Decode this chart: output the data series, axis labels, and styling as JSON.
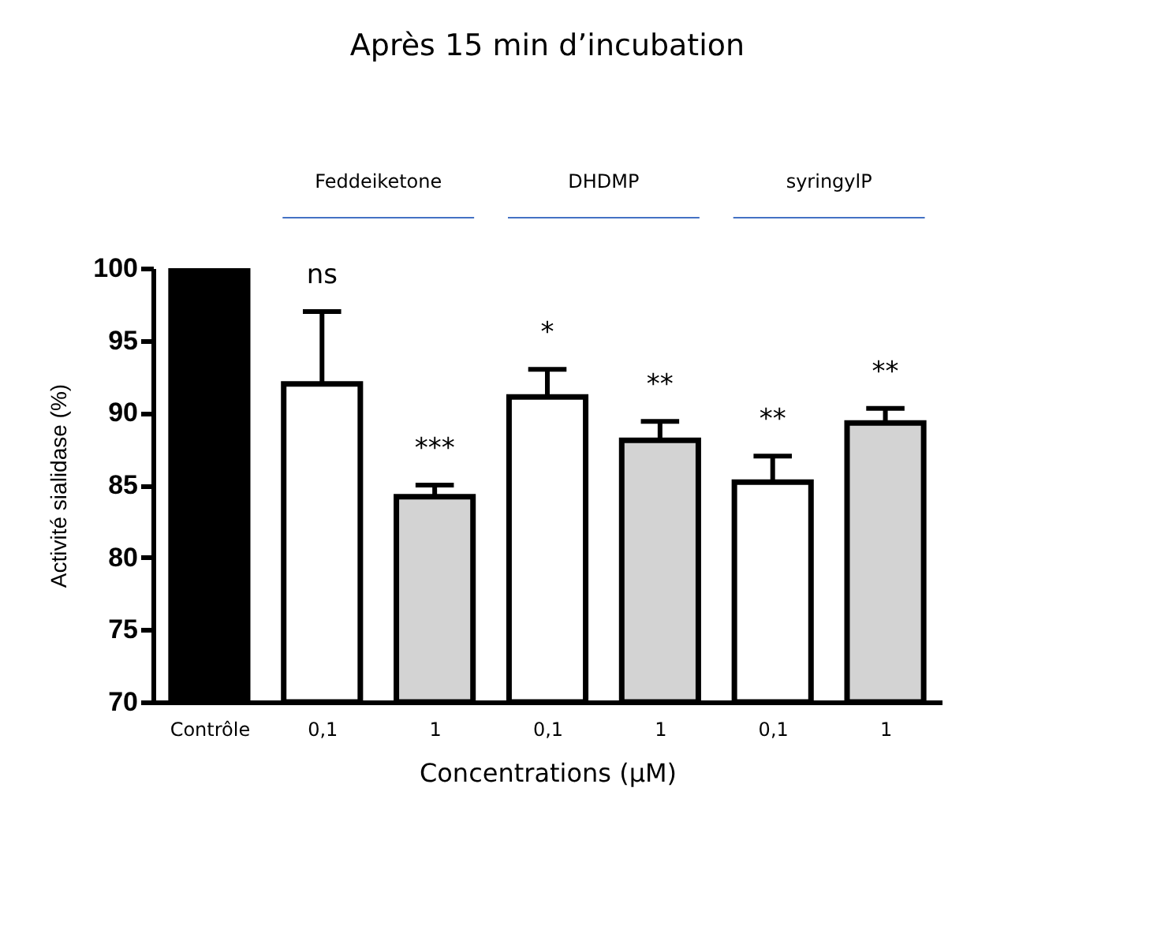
{
  "chart_data": {
    "type": "bar",
    "title": "Après 15 min d’incubation",
    "categories": [
      "Contrôle",
      "0,1",
      "1",
      "0,1",
      "1",
      "0,1",
      "1"
    ],
    "values": [
      100,
      92,
      84.2,
      91.1,
      88.1,
      85.2,
      89.3
    ],
    "colors": [
      "#000000",
      "#ffffff",
      "#d3d3d3",
      "#ffffff",
      "#d3d3d3",
      "#ffffff",
      "#d3d3d3"
    ],
    "errors": [
      null,
      [
        92,
        97
      ],
      [
        84.2,
        85
      ],
      [
        91.1,
        93
      ],
      [
        88.1,
        89.4
      ],
      [
        85.2,
        87
      ],
      [
        89.3,
        90.3
      ]
    ],
    "xlabel": "Concentrations (µM)",
    "ylabel": "Activité sialidase (%)",
    "ylim": [
      70,
      100
    ],
    "yticks": [
      70,
      75,
      80,
      85,
      90,
      95,
      100
    ],
    "grid": false,
    "annotations": [
      "ns",
      "***",
      "*",
      "**",
      "**",
      "**",
      "Feddeiketone",
      "DHDMP",
      "syringylP"
    ]
  }
}
